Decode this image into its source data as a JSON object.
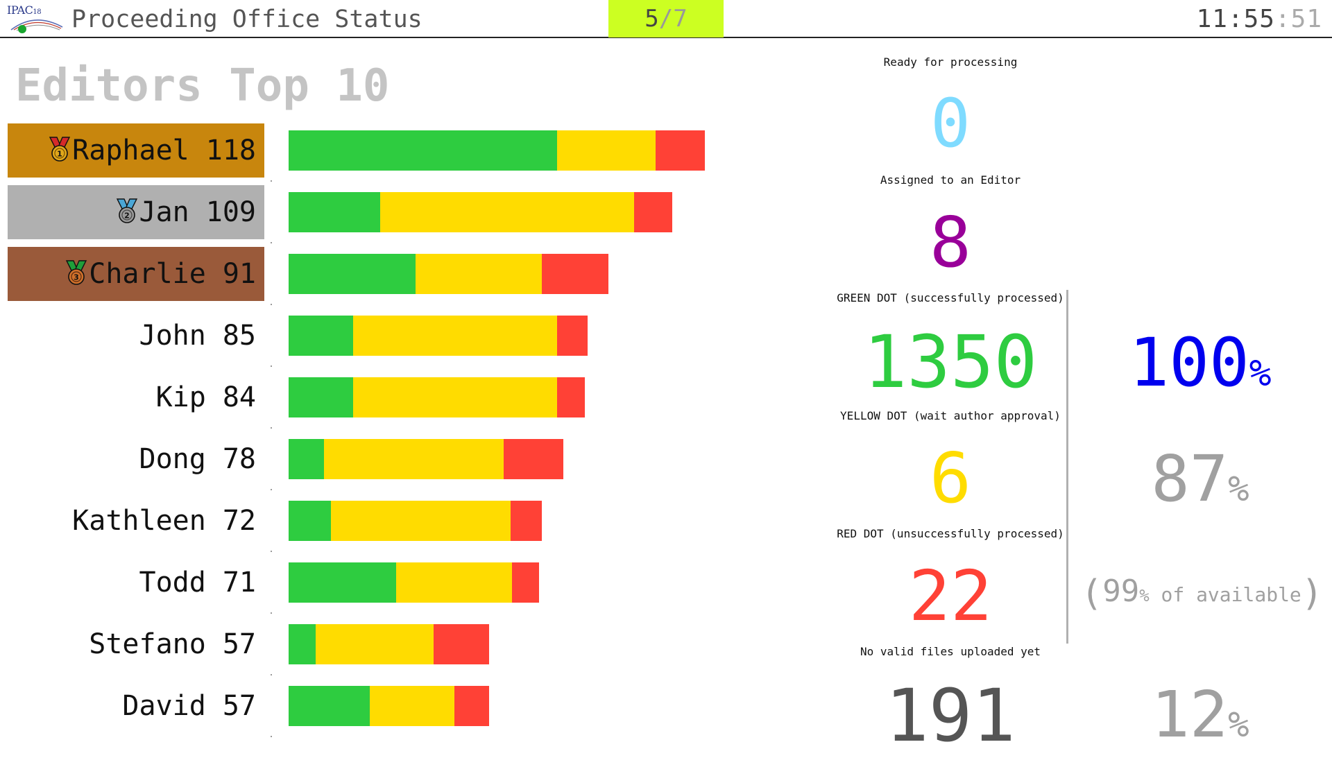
{
  "header": {
    "logo_text": "IPAC",
    "logo_suffix": "18",
    "title": "Proceeding Office Status",
    "page_current": "5",
    "page_separator": "/",
    "page_total": "7",
    "clock_hm": "11:55",
    "clock_s": ":51",
    "counter_bg": "#ccff22"
  },
  "editors": {
    "title": "Editors Top 10",
    "colors": {
      "green": "#2ecc40",
      "yellow": "#ffdc00",
      "red": "#ff4136"
    },
    "list": [
      {
        "name": "Raphael",
        "count": "118",
        "medal": "gold-medal-icon",
        "green": 387,
        "yellow": 142,
        "red": 71
      },
      {
        "name": "Jan",
        "count": "109",
        "medal": "silver-medal-icon",
        "green": 132,
        "yellow": 366,
        "red": 55
      },
      {
        "name": "Charlie",
        "count": "91",
        "medal": "bronze-medal-icon",
        "green": 183,
        "yellow": 182,
        "red": 96
      },
      {
        "name": "John",
        "count": "85",
        "medal": "",
        "green": 93,
        "yellow": 294,
        "red": 44
      },
      {
        "name": "Kip",
        "count": "84",
        "medal": "",
        "green": 93,
        "yellow": 294,
        "red": 40
      },
      {
        "name": "Dong",
        "count": "78",
        "medal": "",
        "green": 51,
        "yellow": 259,
        "red": 86
      },
      {
        "name": "Kathleen",
        "count": "72",
        "medal": "",
        "green": 61,
        "yellow": 259,
        "red": 45
      },
      {
        "name": "Todd",
        "count": "71",
        "medal": "",
        "green": 155,
        "yellow": 167,
        "red": 39
      },
      {
        "name": "Stefano",
        "count": "57",
        "medal": "",
        "green": 39,
        "yellow": 170,
        "red": 80
      },
      {
        "name": "David",
        "count": "57",
        "medal": "",
        "green": 117,
        "yellow": 122,
        "red": 50
      }
    ]
  },
  "stats": {
    "ready_label": "Ready for processing",
    "ready_value": "0",
    "ready_color": "#7fdbff",
    "assigned_label": "Assigned to an Editor",
    "assigned_value": "8",
    "assigned_color": "#990099",
    "green_label": "GREEN DOT (successfully processed)",
    "green_value": "1350",
    "green_color": "#2ecc40",
    "green_pct": "100",
    "green_pct_color": "#0000ee",
    "yellow_label": "YELLOW DOT (wait author approval)",
    "yellow_value": "6",
    "yellow_color": "#ffdc00",
    "yellow_pct": "87",
    "red_label": "RED DOT (unsuccessfully processed)",
    "red_value": "22",
    "red_color": "#ff4136",
    "available_open": "(",
    "available_pct": "99",
    "available_text": " of available",
    "available_close": ")",
    "novalid_label": "No valid files uploaded yet",
    "novalid_value": "191",
    "novalid_color": "#555555",
    "novalid_pct": "12",
    "pct_sign": "%"
  }
}
